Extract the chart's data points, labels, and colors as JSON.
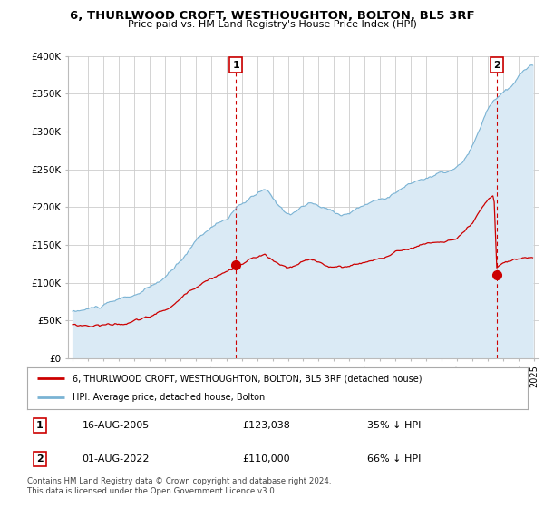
{
  "title": "6, THURLWOOD CROFT, WESTHOUGHTON, BOLTON, BL5 3RF",
  "subtitle": "Price paid vs. HM Land Registry's House Price Index (HPI)",
  "legend_line1": "6, THURLWOOD CROFT, WESTHOUGHTON, BOLTON, BL5 3RF (detached house)",
  "legend_line2": "HPI: Average price, detached house, Bolton",
  "annotation1_label": "1",
  "annotation1_date": "16-AUG-2005",
  "annotation1_price": "£123,038",
  "annotation1_hpi": "35% ↓ HPI",
  "annotation2_label": "2",
  "annotation2_date": "01-AUG-2022",
  "annotation2_price": "£110,000",
  "annotation2_hpi": "66% ↓ HPI",
  "footnote": "Contains HM Land Registry data © Crown copyright and database right 2024.\nThis data is licensed under the Open Government Licence v3.0.",
  "hpi_color": "#7ab3d4",
  "hpi_fill_color": "#daeaf5",
  "price_color": "#cc0000",
  "annotation_color": "#cc0000",
  "background_color": "#ffffff",
  "grid_color": "#cccccc",
  "ylim": [
    0,
    400000
  ],
  "yticks": [
    0,
    50000,
    100000,
    150000,
    200000,
    250000,
    300000,
    350000,
    400000
  ],
  "ytick_labels": [
    "£0",
    "£50K",
    "£100K",
    "£150K",
    "£200K",
    "£250K",
    "£300K",
    "£350K",
    "£400K"
  ],
  "buy1_x": 2005.62,
  "buy1_y": 123038,
  "buy2_x": 2022.58,
  "buy2_y": 110000,
  "vline1_x": 2005.62,
  "vline2_x": 2022.58,
  "xlim_min": 1994.7,
  "xlim_max": 2025.3
}
